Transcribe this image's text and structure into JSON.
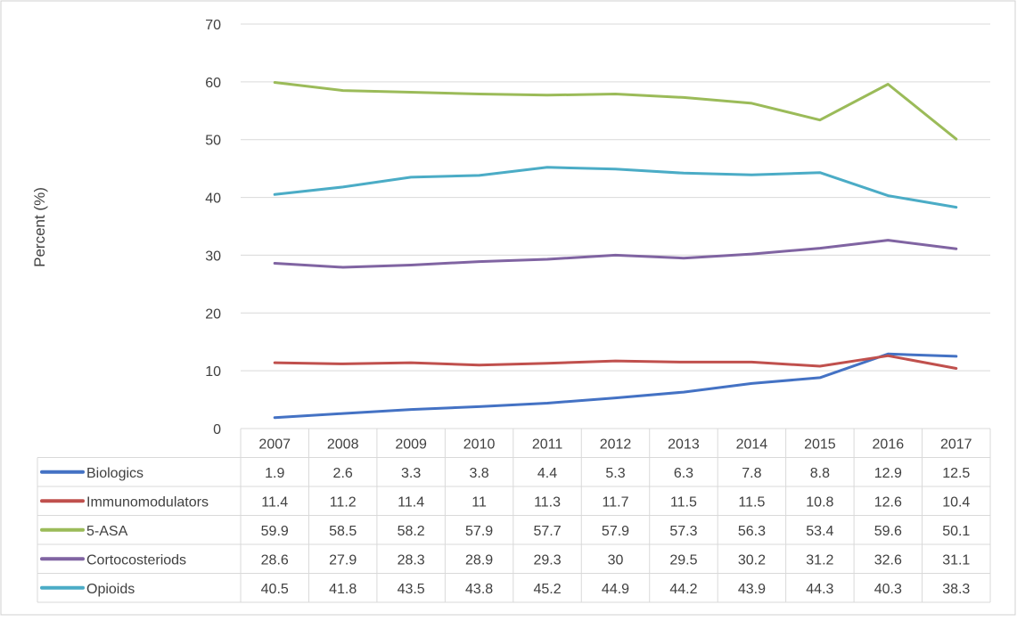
{
  "chart_data": {
    "type": "line",
    "title": "",
    "xlabel": "",
    "ylabel": "Percent (%)",
    "ylim": [
      0,
      70
    ],
    "yticks": [
      0,
      10,
      20,
      30,
      40,
      50,
      60,
      70
    ],
    "grid": true,
    "legend": "data-table",
    "categories": [
      "2007",
      "2008",
      "2009",
      "2010",
      "2011",
      "2012",
      "2013",
      "2014",
      "2015",
      "2016",
      "2017"
    ],
    "series": [
      {
        "name": "Biologics",
        "color": "#4472c4",
        "values": [
          1.9,
          2.6,
          3.3,
          3.8,
          4.4,
          5.3,
          6.3,
          7.8,
          8.8,
          12.9,
          12.5
        ]
      },
      {
        "name": "Immunomodulators",
        "color": "#c0504d",
        "values": [
          11.4,
          11.2,
          11.4,
          11,
          11.3,
          11.7,
          11.5,
          11.5,
          10.8,
          12.6,
          10.4
        ]
      },
      {
        "name": "5-ASA",
        "color": "#9bbb59",
        "values": [
          59.9,
          58.5,
          58.2,
          57.9,
          57.7,
          57.9,
          57.3,
          56.3,
          53.4,
          59.6,
          50.1
        ]
      },
      {
        "name": "Cortocosteriods",
        "color": "#8064a2",
        "values": [
          28.6,
          27.9,
          28.3,
          28.9,
          29.3,
          30,
          29.5,
          30.2,
          31.2,
          32.6,
          31.1
        ]
      },
      {
        "name": "Opioids",
        "color": "#4bacc6",
        "values": [
          40.5,
          41.8,
          43.5,
          43.8,
          45.2,
          44.9,
          44.2,
          43.9,
          44.3,
          40.3,
          38.3
        ]
      }
    ]
  }
}
